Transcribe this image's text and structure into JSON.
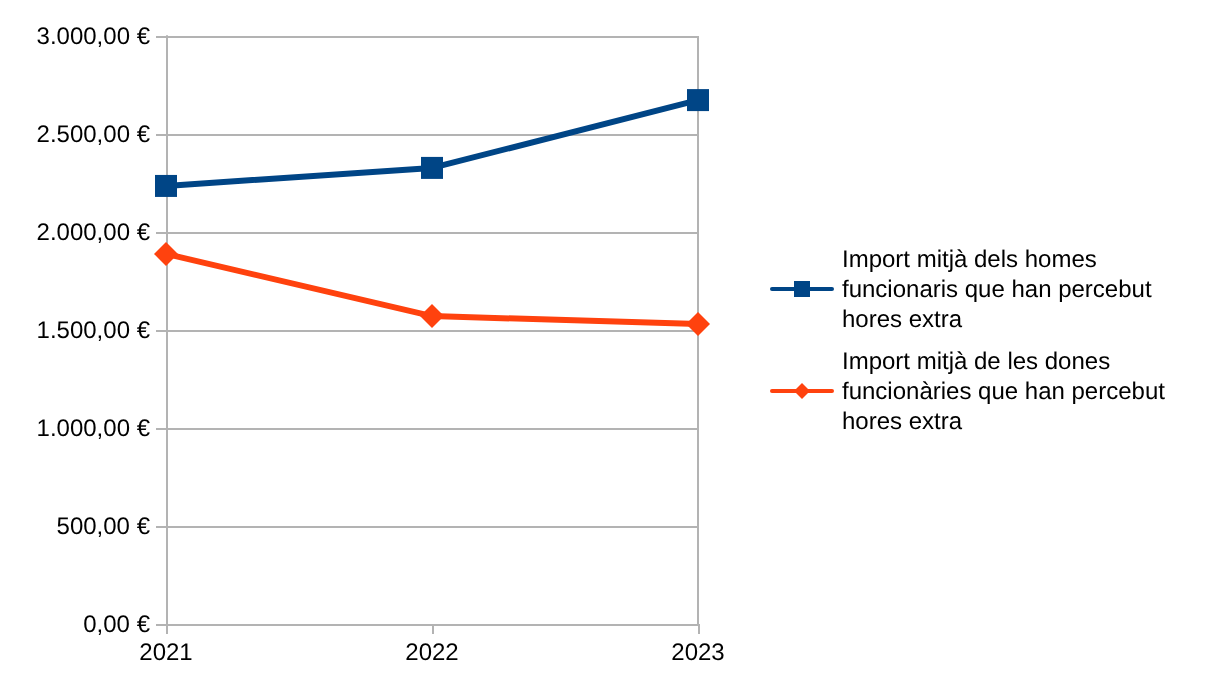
{
  "chart_data": {
    "type": "line",
    "categories": [
      "2021",
      "2022",
      "2023"
    ],
    "series": [
      {
        "name": "Import mitjà dels homes funcionaris que han percebut hores extra",
        "color": "#004586",
        "marker": "square",
        "values": [
          2235,
          2327,
          2673
        ]
      },
      {
        "name": "Import mitjà de les dones funcionàries que han percebut hores extra",
        "color": "#ff420e",
        "marker": "diamond",
        "values": [
          1888,
          1571,
          1531
        ]
      }
    ],
    "ylim": [
      0,
      3000
    ],
    "yticks": [
      {
        "value": 0,
        "label": "0,00 €"
      },
      {
        "value": 500,
        "label": "500,00 €"
      },
      {
        "value": 1000,
        "label": "1.000,00 €"
      },
      {
        "value": 1500,
        "label": "1.500,00 €"
      },
      {
        "value": 2000,
        "label": "2.000,00 €"
      },
      {
        "value": 2500,
        "label": "2.500,00 €"
      },
      {
        "value": 3000,
        "label": "3.000,00 €"
      }
    ],
    "grid": "y",
    "legend": "right",
    "line_style": "solid"
  }
}
